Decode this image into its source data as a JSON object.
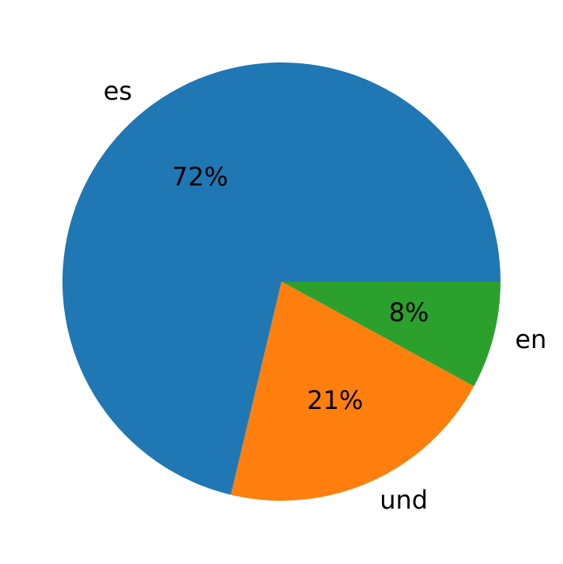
{
  "chart_data": {
    "type": "pie",
    "categories": [
      "es",
      "und",
      "en"
    ],
    "values": [
      72,
      21,
      8
    ],
    "value_labels": [
      "72%",
      "21%",
      "8%"
    ],
    "colors": [
      "#1f77b4",
      "#ff7f0e",
      "#2ca02c"
    ]
  }
}
